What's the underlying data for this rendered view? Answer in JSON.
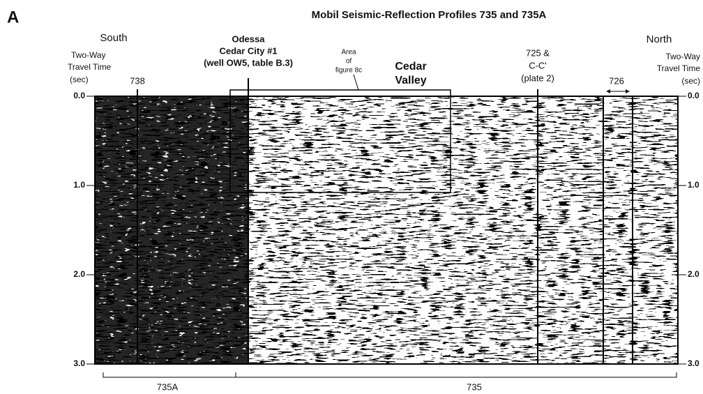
{
  "panel_label": "A",
  "title": "Mobil Seismic-Reflection Profiles 735 and 735A",
  "left_end": "South",
  "right_end": "North",
  "left_axis_label": [
    "Two-Way",
    "Travel Time",
    "(sec)"
  ],
  "right_axis_label": [
    "Two-Way",
    "Travel Time",
    "(sec)"
  ],
  "left_ticks": [
    "0.0",
    "1.0",
    "2.0",
    "3.0"
  ],
  "right_ticks": [
    "0.0",
    "1.0",
    "2.0",
    "3.0"
  ],
  "annotations": {
    "line_738": "738",
    "well": [
      "Odessa",
      "Cedar City #1",
      "(well OW5, table B.3)"
    ],
    "inset": [
      "Area",
      "of",
      "figure 8c"
    ],
    "valley": [
      "Cedar",
      "Valley"
    ],
    "line_725": [
      "725 &",
      "C-C'",
      "(plate 2)"
    ],
    "line_726": "726"
  },
  "profiles": [
    "735A",
    "735"
  ]
}
